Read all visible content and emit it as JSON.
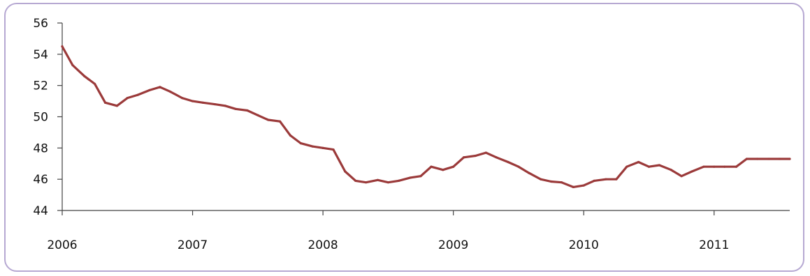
{
  "chart_data": {
    "type": "line",
    "title": "",
    "xlabel": "",
    "ylabel": "",
    "xlim": [
      2006.0,
      2011.58
    ],
    "ylim": [
      44,
      56
    ],
    "yticks": [
      44,
      46,
      48,
      50,
      52,
      54,
      56
    ],
    "xticks": [
      2006,
      2007,
      2008,
      2009,
      2010,
      2011
    ],
    "ytick_labels": [
      "44",
      "46",
      "48",
      "50",
      "52",
      "54",
      "56"
    ],
    "xtick_labels": [
      "2006",
      "2007",
      "2008",
      "2009",
      "2010",
      "2011"
    ],
    "grid": false,
    "line_color": "#9b3a3a",
    "frame_color": "#b6a8d2",
    "series": [
      {
        "x": [
          2006.0,
          2006.08,
          2006.17,
          2006.25,
          2006.33,
          2006.42,
          2006.5,
          2006.58,
          2006.67,
          2006.75,
          2006.83,
          2006.92,
          2007.0,
          2007.08,
          2007.17,
          2007.25,
          2007.33,
          2007.42,
          2007.5,
          2007.58,
          2007.67,
          2007.75,
          2007.83,
          2007.92,
          2008.0,
          2008.08,
          2008.17,
          2008.25,
          2008.33,
          2008.42,
          2008.5,
          2008.58,
          2008.67,
          2008.75,
          2008.83,
          2008.92,
          2009.0,
          2009.08,
          2009.17,
          2009.25,
          2009.33,
          2009.42,
          2009.5,
          2009.58,
          2009.67,
          2009.75,
          2009.83,
          2009.92,
          2010.0,
          2010.08,
          2010.17,
          2010.25,
          2010.33,
          2010.42,
          2010.5,
          2010.58,
          2010.67,
          2010.75,
          2010.83,
          2010.92,
          2011.0,
          2011.08,
          2011.17,
          2011.25,
          2011.33,
          2011.42,
          2011.5,
          2011.58
        ],
        "values": [
          54.5,
          53.3,
          52.6,
          52.1,
          50.9,
          50.7,
          51.2,
          51.4,
          51.7,
          51.9,
          51.6,
          51.2,
          51.0,
          50.9,
          50.8,
          50.7,
          50.5,
          50.4,
          50.1,
          49.8,
          49.7,
          48.8,
          48.3,
          48.1,
          48.0,
          47.9,
          46.5,
          45.9,
          45.8,
          45.95,
          45.8,
          45.9,
          46.1,
          46.2,
          46.8,
          46.6,
          46.8,
          47.4,
          47.5,
          47.7,
          47.4,
          47.1,
          46.8,
          46.4,
          46.0,
          45.85,
          45.8,
          45.5,
          45.6,
          45.9,
          46.0,
          46.0,
          46.8,
          47.1,
          46.8,
          46.9,
          46.6,
          46.2,
          46.5,
          46.8,
          46.8,
          46.8,
          46.8,
          47.3,
          47.3,
          47.3,
          47.3,
          47.3
        ]
      }
    ]
  }
}
